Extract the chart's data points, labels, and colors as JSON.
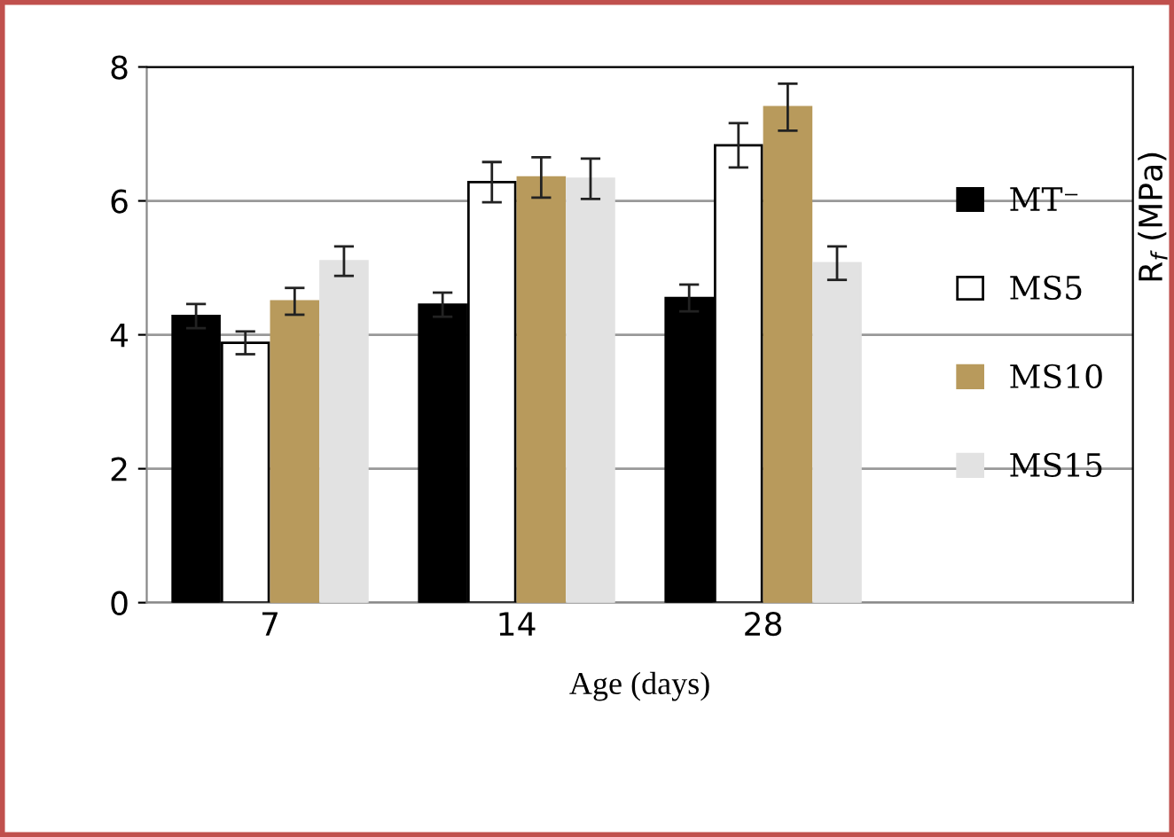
{
  "chart_data": {
    "type": "bar",
    "xlabel": "Age (days)",
    "annotations": [
      "R$_{f}$ (MPa)"
    ],
    "categories": [
      "7",
      "14",
      "28"
    ],
    "series": [
      {
        "name": "MT⁻",
        "color": "#000000",
        "values": [
          4.28,
          4.45,
          4.55
        ],
        "errors": [
          0.18,
          0.18,
          0.2
        ]
      },
      {
        "name": "MS5",
        "color": "#ffffff",
        "values": [
          3.88,
          6.28,
          6.83
        ],
        "errors": [
          0.17,
          0.3,
          0.33
        ]
      },
      {
        "name": "MS10",
        "color": "#b89a5c",
        "values": [
          4.5,
          6.35,
          7.4
        ],
        "errors": [
          0.2,
          0.3,
          0.35
        ]
      },
      {
        "name": "MS15",
        "color": "#e2e2e2",
        "values": [
          5.1,
          6.33,
          5.07
        ],
        "errors": [
          0.22,
          0.3,
          0.25
        ]
      }
    ],
    "ylim": [
      0,
      8
    ],
    "yticks": [
      0,
      2,
      4,
      6,
      8
    ],
    "grid": "y",
    "legend": "right"
  }
}
